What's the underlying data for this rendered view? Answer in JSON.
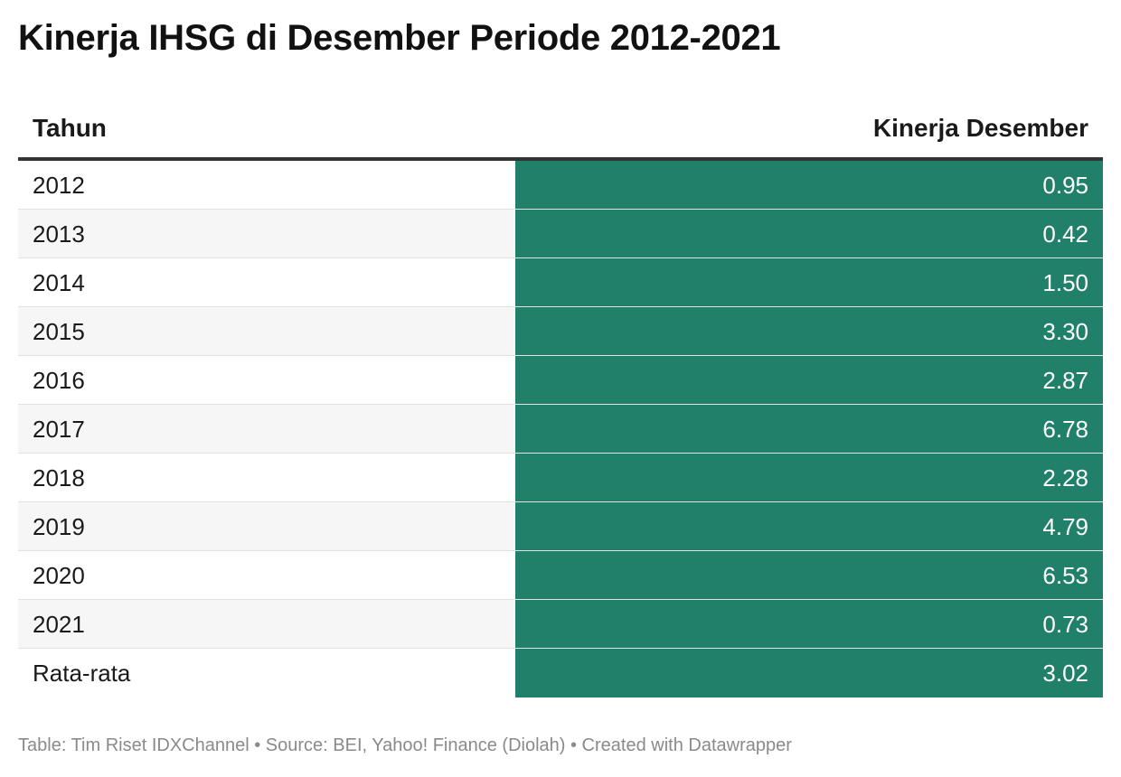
{
  "title": "Kinerja IHSG di Desember Periode 2012-2021",
  "header": {
    "col_year": "Tahun",
    "col_value": "Kinerja Desember"
  },
  "colors": {
    "value_fill": "#20806a",
    "row_alt": "#f6f6f6",
    "header_rule": "#333333"
  },
  "chart_data": {
    "type": "table",
    "columns": [
      "Tahun",
      "Kinerja Desember"
    ],
    "rows": [
      {
        "year": "2012",
        "value": "0.95"
      },
      {
        "year": "2013",
        "value": "0.42"
      },
      {
        "year": "2014",
        "value": "1.50"
      },
      {
        "year": "2015",
        "value": "3.30"
      },
      {
        "year": "2016",
        "value": "2.87"
      },
      {
        "year": "2017",
        "value": "6.78"
      },
      {
        "year": "2018",
        "value": "2.28"
      },
      {
        "year": "2019",
        "value": "4.79"
      },
      {
        "year": "2020",
        "value": "6.53"
      },
      {
        "year": "2021",
        "value": "0.73"
      },
      {
        "year": "Rata-rata",
        "value": "3.02"
      }
    ]
  },
  "footer": "Table: Tim Riset IDXChannel • Source: BEI, Yahoo! Finance (Diolah) • Created with Datawrapper"
}
